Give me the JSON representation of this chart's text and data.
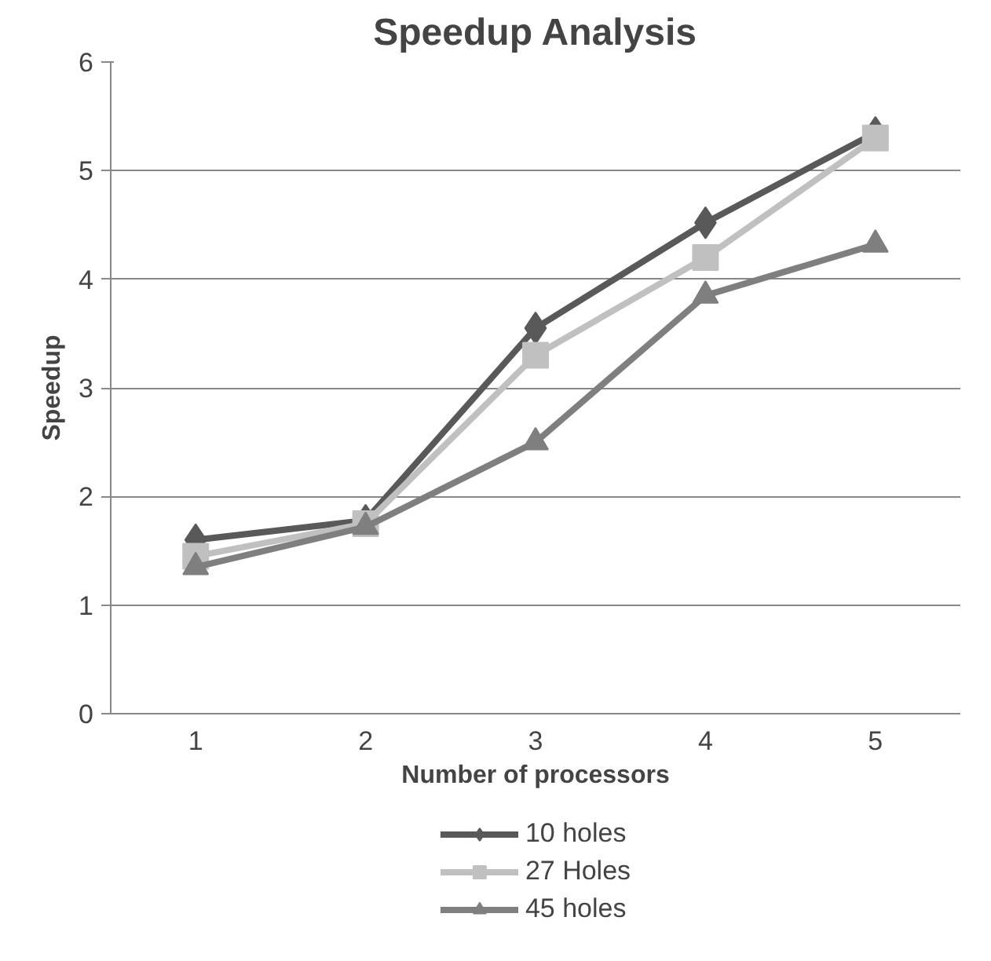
{
  "chart_data": {
    "type": "line",
    "title": "Speedup Analysis",
    "xlabel": "Number of processors",
    "ylabel": "Speedup",
    "categories": [
      "1",
      "2",
      "3",
      "4",
      "5"
    ],
    "series": [
      {
        "name": "10 holes",
        "color": "#595959",
        "marker": "diamond",
        "values": [
          1.6,
          1.78,
          3.55,
          4.52,
          5.35
        ]
      },
      {
        "name": "27 Holes",
        "color": "#c0c0c0",
        "marker": "square",
        "values": [
          1.45,
          1.75,
          3.3,
          4.2,
          5.3
        ]
      },
      {
        "name": "45 holes",
        "color": "#7f7f7f",
        "marker": "triangle",
        "values": [
          1.35,
          1.72,
          2.5,
          3.85,
          4.32
        ]
      }
    ],
    "ylim": [
      0,
      6
    ],
    "yticks": [
      0,
      1,
      2,
      3,
      4,
      5,
      6
    ],
    "grid": "y",
    "legend": "bottom"
  }
}
